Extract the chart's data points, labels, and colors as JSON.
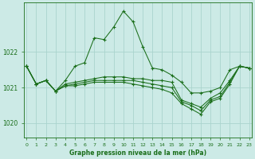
{
  "xlabel": "Graphe pression niveau de la mer (hPa)",
  "background_color": "#cceae6",
  "grid_color": "#aad4ce",
  "line_color": "#1a6e1a",
  "x_ticks": [
    0,
    1,
    2,
    3,
    4,
    5,
    6,
    7,
    8,
    9,
    10,
    11,
    12,
    13,
    14,
    15,
    16,
    17,
    18,
    19,
    20,
    21,
    22,
    23
  ],
  "ylim": [
    1019.6,
    1023.4
  ],
  "yticks": [
    1020,
    1021,
    1022
  ],
  "series": [
    [
      1021.6,
      1021.1,
      1021.2,
      1020.9,
      1021.2,
      1021.6,
      1021.7,
      1022.4,
      1022.35,
      1022.7,
      1023.15,
      1022.85,
      1022.15,
      1021.55,
      1021.5,
      1021.35,
      1021.15,
      1020.85,
      1020.85,
      1020.9,
      1021.0,
      1021.5,
      1021.6,
      1021.55
    ],
    [
      1021.6,
      1021.1,
      1021.2,
      1020.9,
      1021.1,
      1021.15,
      1021.2,
      1021.25,
      1021.3,
      1021.3,
      1021.3,
      1021.25,
      1021.25,
      1021.2,
      1021.2,
      1021.15,
      1020.65,
      1020.55,
      1020.45,
      1020.7,
      1020.85,
      1021.2,
      1021.6,
      1021.55
    ],
    [
      1021.6,
      1021.1,
      1021.2,
      1020.9,
      1021.05,
      1021.1,
      1021.15,
      1021.2,
      1021.2,
      1021.2,
      1021.2,
      1021.2,
      1021.15,
      1021.1,
      1021.05,
      1021.0,
      1020.6,
      1020.5,
      1020.35,
      1020.65,
      1020.75,
      1021.15,
      1021.6,
      1021.55
    ],
    [
      1021.6,
      1021.1,
      1021.2,
      1020.9,
      1021.05,
      1021.05,
      1021.1,
      1021.15,
      1021.15,
      1021.15,
      1021.15,
      1021.1,
      1021.05,
      1021.0,
      1020.95,
      1020.85,
      1020.55,
      1020.4,
      1020.25,
      1020.6,
      1020.7,
      1021.1,
      1021.6,
      1021.55
    ]
  ]
}
